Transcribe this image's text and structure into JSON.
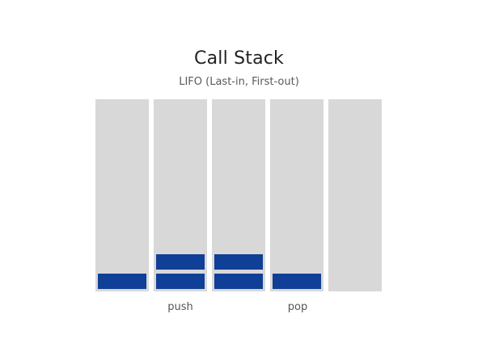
{
  "title": "Call Stack",
  "subtitle": "LIFO (Last-in, First-out)",
  "colors": {
    "column": "#d8d8d8",
    "frame": "#0f3f96"
  },
  "columns": [
    {
      "frames": 1,
      "label": ""
    },
    {
      "frames": 2,
      "label": "push"
    },
    {
      "frames": 2,
      "label": ""
    },
    {
      "frames": 1,
      "label": "pop"
    },
    {
      "frames": 0,
      "label": ""
    }
  ],
  "labels": {
    "push": "push",
    "pop": "pop"
  }
}
